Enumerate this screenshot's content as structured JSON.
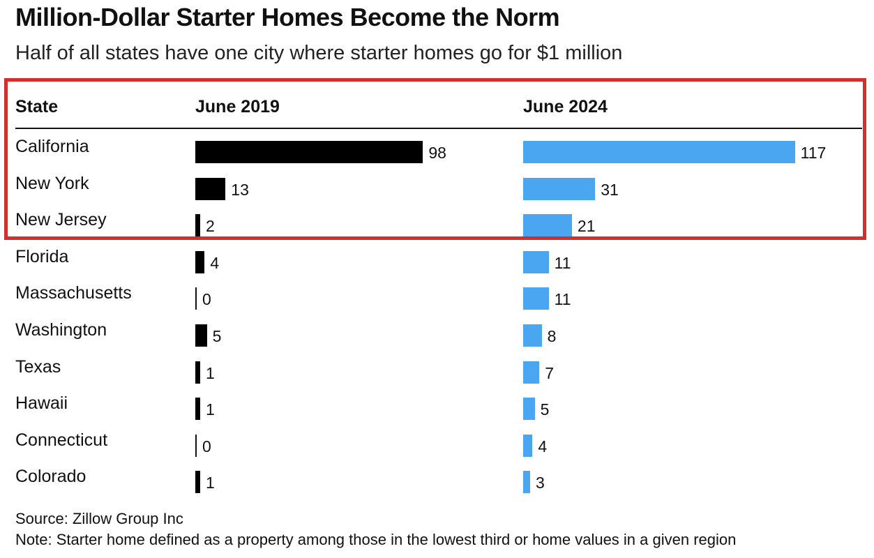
{
  "header": {
    "title": "Million-Dollar Starter Homes Become the Norm",
    "subtitle": "Half of all states have one city where starter homes go for $1 million"
  },
  "columns": {
    "state": "State",
    "col_2019": "June 2019",
    "col_2024": "June 2024"
  },
  "footer": {
    "source": "Source: Zillow Group Inc",
    "note": "Note: Starter home defined as a property among those in the lowest third or home values in a given region"
  },
  "colors": {
    "bar_2019": "#000000",
    "bar_2024": "#4aa6f0",
    "highlight_border": "#d32f2f"
  },
  "chart_data": {
    "type": "bar",
    "orientation": "horizontal",
    "categories": [
      "California",
      "New York",
      "New Jersey",
      "Florida",
      "Massachusetts",
      "Washington",
      "Texas",
      "Hawaii",
      "Connecticut",
      "Colorado"
    ],
    "series": [
      {
        "name": "June 2019",
        "values": [
          98,
          13,
          2,
          4,
          0,
          5,
          1,
          1,
          0,
          1
        ]
      },
      {
        "name": "June 2024",
        "values": [
          117,
          31,
          21,
          11,
          11,
          8,
          7,
          5,
          4,
          3
        ]
      }
    ],
    "highlighted_categories": [
      "California",
      "New York",
      "New Jersey"
    ]
  }
}
